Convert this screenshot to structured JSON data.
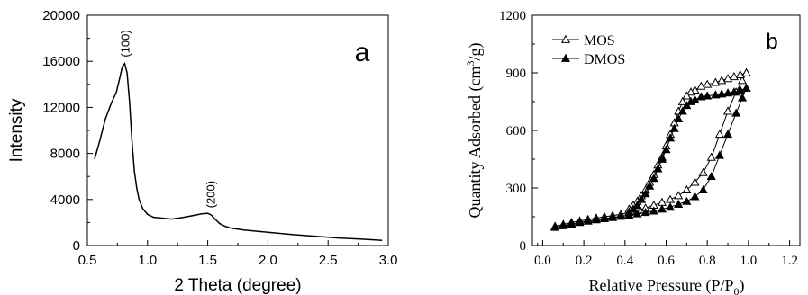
{
  "chart_data": [
    {
      "type": "line",
      "panel_label": "a",
      "xlabel": "2 Theta (degree)",
      "ylabel": "Intensity",
      "xlim": [
        0.5,
        3.0
      ],
      "ylim": [
        0,
        20000
      ],
      "xticks": [
        0.5,
        1.0,
        1.5,
        2.0,
        2.5,
        3.0
      ],
      "xtick_labels": [
        "0.5",
        "1.0",
        "1.5",
        "2.0",
        "2.5",
        "3.0"
      ],
      "yticks": [
        0,
        4000,
        8000,
        12000,
        16000,
        20000
      ],
      "ytick_labels": [
        "0",
        "4000",
        "8000",
        "12000",
        "16000",
        "20000"
      ],
      "grid": false,
      "annotations": [
        {
          "text": "(100)",
          "x": 0.81,
          "y": 16200
        },
        {
          "text": "(200)",
          "x": 1.52,
          "y": 3100
        }
      ],
      "series": [
        {
          "x": [
            0.56,
            0.6,
            0.65,
            0.7,
            0.74,
            0.77,
            0.79,
            0.81,
            0.83,
            0.85,
            0.87,
            0.89,
            0.91,
            0.93,
            0.96,
            1.0,
            1.05,
            1.1,
            1.2,
            1.3,
            1.4,
            1.45,
            1.5,
            1.53,
            1.56,
            1.6,
            1.65,
            1.7,
            1.8,
            1.9,
            2.0,
            2.2,
            2.4,
            2.6,
            2.8,
            2.95
          ],
          "y": [
            7500,
            9000,
            11000,
            12400,
            13300,
            14600,
            15500,
            15800,
            15000,
            12500,
            9200,
            6500,
            5000,
            4000,
            3200,
            2700,
            2450,
            2400,
            2300,
            2450,
            2650,
            2750,
            2800,
            2650,
            2300,
            1900,
            1650,
            1500,
            1350,
            1250,
            1150,
            950,
            800,
            650,
            550,
            450
          ]
        }
      ]
    },
    {
      "type": "line",
      "panel_label": "b",
      "xlabel": "Relative Pressure (P/P",
      "xlabel_sub": "0",
      "xlabel_end": ")",
      "ylabel": "Quantity Adsorbed (cm",
      "ylabel_sup": "3",
      "ylabel_end": "/g)",
      "xlim": [
        -0.05,
        1.25
      ],
      "ylim": [
        0,
        1200
      ],
      "xticks": [
        0.0,
        0.2,
        0.4,
        0.6,
        0.8,
        1.0,
        1.2
      ],
      "xtick_labels": [
        "0.0",
        "0.2",
        "0.4",
        "0.6",
        "0.8",
        "1.0",
        "1.2"
      ],
      "yticks": [
        0,
        300,
        600,
        900,
        1200
      ],
      "ytick_labels": [
        "0",
        "300",
        "600",
        "900",
        "1200"
      ],
      "grid": false,
      "legend_position": "top-left",
      "series": [
        {
          "name": "MOS",
          "marker": "open-triangle",
          "adsorption": {
            "x": [
              0.06,
              0.1,
              0.14,
              0.18,
              0.22,
              0.26,
              0.3,
              0.34,
              0.38,
              0.42,
              0.46,
              0.5,
              0.54,
              0.58,
              0.62,
              0.66,
              0.7,
              0.74,
              0.78,
              0.82,
              0.86,
              0.9,
              0.94,
              0.97,
              0.99
            ],
            "y": [
              100,
              110,
              120,
              128,
              136,
              143,
              150,
              156,
              163,
              172,
              183,
              195,
              210,
              225,
              240,
              260,
              290,
              330,
              380,
              460,
              580,
              700,
              800,
              860,
              900
            ]
          },
          "desorption": {
            "x": [
              0.99,
              0.96,
              0.93,
              0.9,
              0.87,
              0.84,
              0.8,
              0.77,
              0.74,
              0.72,
              0.7,
              0.68,
              0.66,
              0.64,
              0.62,
              0.6,
              0.58,
              0.56,
              0.54,
              0.52,
              0.5,
              0.48,
              0.46,
              0.44,
              0.42
            ],
            "y": [
              900,
              890,
              880,
              870,
              860,
              850,
              840,
              830,
              810,
              800,
              780,
              750,
              700,
              640,
              580,
              520,
              460,
              420,
              370,
              330,
              290,
              260,
              230,
              210,
              190
            ]
          }
        },
        {
          "name": "DMOS",
          "marker": "filled-triangle",
          "adsorption": {
            "x": [
              0.06,
              0.1,
              0.14,
              0.18,
              0.22,
              0.26,
              0.3,
              0.34,
              0.38,
              0.42,
              0.46,
              0.5,
              0.54,
              0.58,
              0.62,
              0.66,
              0.7,
              0.74,
              0.78,
              0.82,
              0.86,
              0.9,
              0.94,
              0.97,
              0.99
            ],
            "y": [
              95,
              103,
              112,
              120,
              127,
              134,
              140,
              146,
              152,
              158,
              165,
              172,
              180,
              190,
              200,
              215,
              230,
              255,
              290,
              360,
              470,
              580,
              690,
              770,
              820
            ]
          },
          "desorption": {
            "x": [
              0.99,
              0.96,
              0.93,
              0.9,
              0.87,
              0.84,
              0.8,
              0.77,
              0.74,
              0.72,
              0.7,
              0.68,
              0.66,
              0.64,
              0.62,
              0.6,
              0.58,
              0.56,
              0.54,
              0.52,
              0.5,
              0.48,
              0.46,
              0.44,
              0.42
            ],
            "y": [
              820,
              810,
              800,
              795,
              790,
              785,
              780,
              775,
              760,
              750,
              730,
              700,
              660,
              610,
              560,
              500,
              450,
              400,
              350,
              310,
              270,
              240,
              210,
              190,
              175
            ]
          }
        }
      ]
    }
  ]
}
